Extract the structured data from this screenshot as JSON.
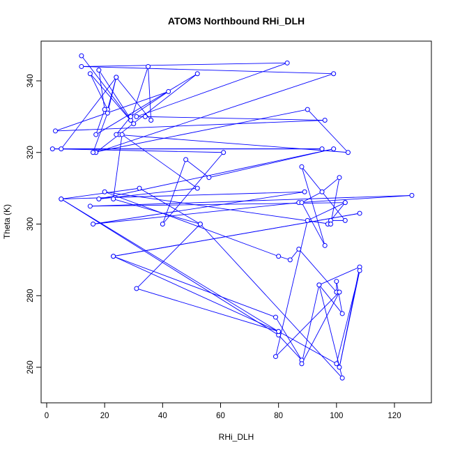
{
  "chart_data": {
    "type": "line",
    "title": "ATOM3 Northbound RHi_DLH",
    "xlabel": "RHi_DLH",
    "ylabel": "Theta (K)",
    "xlim": [
      0,
      130
    ],
    "ylim": [
      250,
      350
    ],
    "xticks": [
      0,
      20,
      40,
      60,
      80,
      100,
      120
    ],
    "yticks": [
      260,
      280,
      300,
      320,
      340
    ],
    "grid": false,
    "legend": "none",
    "line_color": "#0000ff",
    "marker": "open-circle",
    "series": [
      {
        "points": [
          [
            12,
            347
          ],
          [
            29,
            329
          ],
          [
            35,
            344
          ],
          [
            36,
            329
          ],
          [
            24,
            341
          ],
          [
            21,
            332
          ],
          [
            15,
            342
          ],
          [
            30,
            328
          ],
          [
            18,
            343
          ],
          [
            20,
            332
          ],
          [
            17,
            325
          ],
          [
            52,
            342
          ],
          [
            25,
            325
          ],
          [
            17,
            320
          ],
          [
            99,
            342
          ],
          [
            12,
            344
          ],
          [
            83,
            345
          ],
          [
            31,
            330
          ],
          [
            34,
            330
          ],
          [
            96,
            329
          ],
          [
            3,
            326
          ],
          [
            42,
            337
          ],
          [
            29,
            330
          ],
          [
            24,
            325
          ],
          [
            104,
            320
          ],
          [
            90,
            332
          ],
          [
            16,
            320
          ],
          [
            21,
            331
          ],
          [
            24,
            341
          ],
          [
            5,
            321
          ],
          [
            95,
            321
          ],
          [
            2,
            321
          ],
          [
            61,
            320
          ],
          [
            40,
            300
          ],
          [
            48,
            318
          ],
          [
            56,
            313
          ],
          [
            99,
            321
          ],
          [
            18,
            307
          ],
          [
            52,
            310
          ],
          [
            26,
            325
          ],
          [
            23,
            307
          ],
          [
            53,
            300
          ],
          [
            32,
            310
          ],
          [
            5,
            307
          ],
          [
            89,
            309
          ],
          [
            16,
            300
          ],
          [
            87,
            306
          ],
          [
            126,
            308
          ],
          [
            15,
            305
          ],
          [
            103,
            306
          ],
          [
            97,
            300
          ],
          [
            98,
            301
          ],
          [
            103,
            301
          ],
          [
            88,
            316
          ],
          [
            96,
            294
          ],
          [
            88,
            306
          ],
          [
            95,
            309
          ],
          [
            101,
            313
          ],
          [
            98,
            300
          ],
          [
            20,
            309
          ],
          [
            80,
            291
          ],
          [
            84,
            290
          ],
          [
            87,
            293
          ],
          [
            100,
            281
          ],
          [
            100,
            284
          ],
          [
            102,
            275
          ],
          [
            94,
            283
          ],
          [
            108,
            288
          ],
          [
            101,
            260
          ],
          [
            108,
            287
          ],
          [
            100,
            261
          ],
          [
            80,
            270
          ],
          [
            5,
            307
          ],
          [
            80,
            269
          ],
          [
            88,
            262
          ],
          [
            79,
            274
          ],
          [
            23,
            291
          ],
          [
            108,
            303
          ],
          [
            23,
            291
          ],
          [
            80,
            270
          ],
          [
            31,
            282
          ],
          [
            53,
            300
          ],
          [
            102,
            257
          ],
          [
            94,
            283
          ],
          [
            88,
            261
          ],
          [
            101,
            281
          ],
          [
            79,
            263
          ],
          [
            90,
            301
          ],
          [
            103,
            306
          ]
        ]
      }
    ]
  }
}
